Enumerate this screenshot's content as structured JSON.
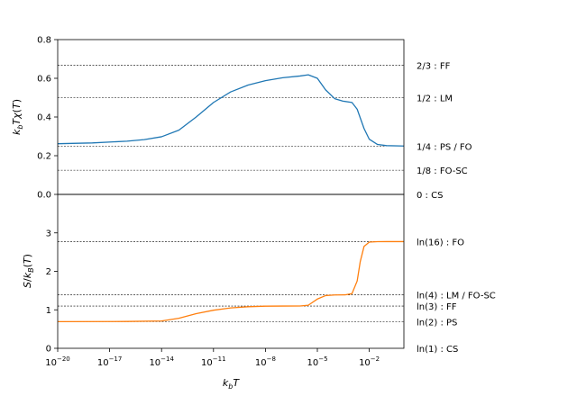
{
  "chart_data": [
    {
      "type": "line",
      "panel": "top",
      "ylabel": "k_bTχ(T)",
      "xscale": "log",
      "xlim": [
        1e-20,
        1
      ],
      "ylim": [
        0,
        0.8
      ],
      "yticks": [
        "0.0",
        "0.2",
        "0.4",
        "0.6",
        "0.8"
      ],
      "yticks_values": [
        0,
        0.2,
        0.4,
        0.6,
        0.8
      ],
      "grid": false,
      "color": "#1f77b4",
      "reference_lines": [
        {
          "value": 0.6667,
          "label": "2/3 : FF"
        },
        {
          "value": 0.5,
          "label": "1/2 : LM"
        },
        {
          "value": 0.25,
          "label": "1/4 : PS / FO"
        },
        {
          "value": 0.125,
          "label": "1/8 : FO-SC"
        },
        {
          "value": 0,
          "label": "0 : CS"
        }
      ],
      "series": [
        {
          "x": [
            1e-20,
            1e-18,
            1e-16,
            1e-15,
            1e-14,
            1e-13,
            1e-12,
            1e-11,
            1e-10,
            1e-09,
            1e-08,
            1e-07,
            1e-06,
            3e-06,
            1e-05,
            3e-05,
            0.0001,
            0.0003,
            0.001,
            0.002,
            0.005,
            0.01,
            0.03,
            0.1,
            1
          ],
          "y": [
            0.262,
            0.266,
            0.275,
            0.283,
            0.298,
            0.332,
            0.4,
            0.475,
            0.53,
            0.565,
            0.588,
            0.603,
            0.612,
            0.618,
            0.6,
            0.54,
            0.495,
            0.482,
            0.475,
            0.44,
            0.34,
            0.285,
            0.258,
            0.252,
            0.25
          ]
        }
      ]
    },
    {
      "type": "line",
      "panel": "bottom",
      "xlabel": "k_bT",
      "ylabel": "S/k_B(T)",
      "xscale": "log",
      "xlim": [
        1e-20,
        1
      ],
      "ylim": [
        0,
        4.0
      ],
      "yticks": [
        "0",
        "1",
        "2",
        "3"
      ],
      "yticks_values": [
        0,
        1,
        2,
        3
      ],
      "xticks": [
        {
          "value": 1e-20,
          "base": "10",
          "exp": "−20"
        },
        {
          "value": 1e-17,
          "base": "10",
          "exp": "−17"
        },
        {
          "value": 1e-14,
          "base": "10",
          "exp": "−14"
        },
        {
          "value": 1e-11,
          "base": "10",
          "exp": "−11"
        },
        {
          "value": 1e-08,
          "base": "10",
          "exp": "−8"
        },
        {
          "value": 1e-05,
          "base": "10",
          "exp": "−5"
        },
        {
          "value": 0.01,
          "base": "10",
          "exp": "−2"
        }
      ],
      "grid": false,
      "color": "#ff7f0e",
      "reference_lines": [
        {
          "value": 2.7726,
          "label": "ln(16) : FO"
        },
        {
          "value": 1.3863,
          "label": "ln(4) : LM / FO-SC"
        },
        {
          "value": 1.0986,
          "label": "ln(3) : FF"
        },
        {
          "value": 0.6931,
          "label": "ln(2) : PS"
        },
        {
          "value": 0,
          "label": "ln(1) : CS"
        }
      ],
      "series": [
        {
          "x": [
            1e-20,
            1e-16,
            1e-14,
            1e-13,
            1e-12,
            1e-11,
            1e-10,
            1e-09,
            1e-08,
            1e-07,
            1e-06,
            3e-06,
            1e-05,
            3e-05,
            0.0001,
            0.0004,
            0.001,
            0.002,
            0.003,
            0.005,
            0.01,
            0.03,
            0.1,
            1
          ],
          "y": [
            0.693,
            0.697,
            0.71,
            0.78,
            0.9,
            0.99,
            1.05,
            1.08,
            1.095,
            1.098,
            1.099,
            1.12,
            1.28,
            1.37,
            1.386,
            1.39,
            1.42,
            1.75,
            2.25,
            2.65,
            2.76,
            2.772,
            2.773,
            2.773
          ]
        }
      ]
    }
  ]
}
